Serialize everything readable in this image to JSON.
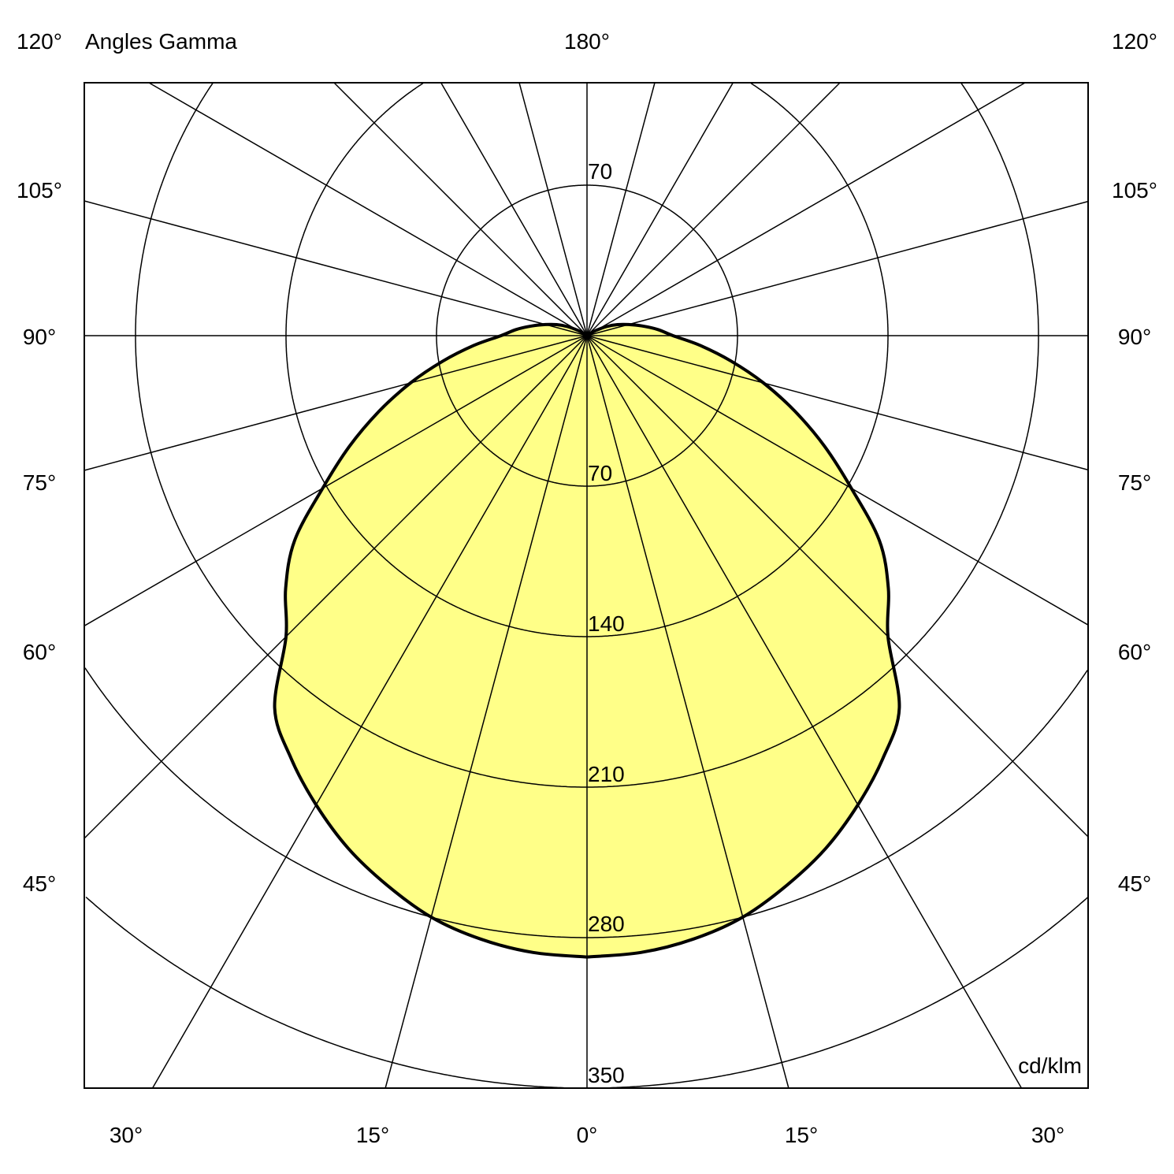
{
  "chart_data": {
    "type": "polar",
    "title": "Angles Gamma",
    "unit": "cd/klm",
    "radial_ticks": [
      70,
      140,
      210,
      280,
      350
    ],
    "radial_range": [
      0,
      350
    ],
    "grid": true,
    "angle_step_deg": 15,
    "angle_labels": {
      "top": [
        "120°",
        "180°",
        "120°"
      ],
      "left": [
        "105°",
        "90°",
        "75°",
        "60°",
        "45°"
      ],
      "right": [
        "105°",
        "90°",
        "75°",
        "60°",
        "45°"
      ],
      "bottom": [
        "30°",
        "15°",
        "0°",
        "15°",
        "30°"
      ]
    },
    "top_ring_label": "70",
    "fill_color": "#ffff88",
    "series": [
      {
        "gamma": [
          0,
          5,
          10,
          15,
          20,
          25,
          30,
          35,
          40,
          45,
          50,
          55,
          60,
          65,
          70,
          75,
          80,
          85,
          90,
          95,
          100,
          105,
          110,
          115,
          120,
          125,
          130,
          180
        ],
        "values": [
          289,
          288,
          285,
          280,
          272,
          263,
          252,
          240,
          226,
          198,
          183,
          166,
          142,
          122,
          103,
          85,
          68,
          53,
          40,
          33,
          26,
          20,
          15,
          10,
          5,
          2,
          0,
          0
        ]
      }
    ]
  }
}
